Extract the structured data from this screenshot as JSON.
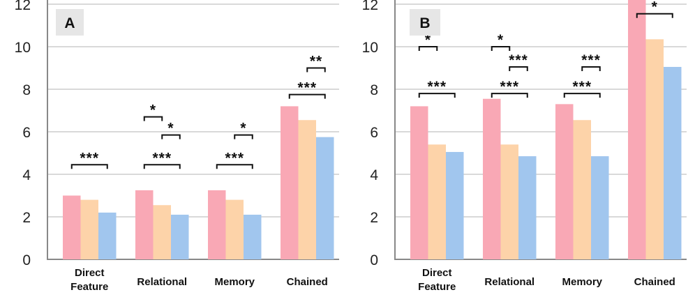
{
  "chart_data": [
    {
      "type": "bar",
      "panel_label": "A",
      "categories": [
        [
          "Direct",
          "Feature"
        ],
        [
          "Relational"
        ],
        [
          "Memory"
        ],
        [
          "Chained"
        ]
      ],
      "series": [
        {
          "values": [
            3.0,
            3.25,
            3.25,
            7.2
          ],
          "color": "#f9a8b5"
        },
        {
          "values": [
            2.8,
            2.55,
            2.8,
            6.55
          ],
          "color": "#fdd3a9"
        },
        {
          "values": [
            2.2,
            2.1,
            2.1,
            5.75
          ],
          "color": "#a1c6ee"
        }
      ],
      "ylim": [
        0,
        12
      ],
      "yticks": [
        0,
        2,
        4,
        6,
        8,
        10,
        12
      ],
      "grid": true,
      "significance": [
        {
          "category": 0,
          "from": 0,
          "to": 2,
          "y": 4.45,
          "label": "***"
        },
        {
          "category": 1,
          "from": 0,
          "to": 2,
          "y": 4.45,
          "label": "***"
        },
        {
          "category": 1,
          "from": 1,
          "to": 2,
          "y": 5.85,
          "label": "*"
        },
        {
          "category": 1,
          "from": 0,
          "to": 1,
          "y": 6.7,
          "label": "*"
        },
        {
          "category": 2,
          "from": 0,
          "to": 2,
          "y": 4.45,
          "label": "***"
        },
        {
          "category": 2,
          "from": 1,
          "to": 2,
          "y": 5.85,
          "label": "*"
        },
        {
          "category": 3,
          "from": 0,
          "to": 2,
          "y": 7.75,
          "label": "***"
        },
        {
          "category": 3,
          "from": 1,
          "to": 2,
          "y": 9.0,
          "label": "**"
        }
      ]
    },
    {
      "type": "bar",
      "panel_label": "B",
      "categories": [
        [
          "Direct",
          "Feature"
        ],
        [
          "Relational"
        ],
        [
          "Memory"
        ],
        [
          "Chained"
        ]
      ],
      "series": [
        {
          "values": [
            7.2,
            7.55,
            7.3,
            12.2
          ],
          "color": "#f9a8b5"
        },
        {
          "values": [
            5.4,
            5.4,
            6.55,
            10.35
          ],
          "color": "#fdd3a9"
        },
        {
          "values": [
            5.05,
            4.85,
            4.85,
            9.05
          ],
          "color": "#a1c6ee"
        }
      ],
      "ylim": [
        0,
        12
      ],
      "yticks": [
        0,
        2,
        4,
        6,
        8,
        10,
        12
      ],
      "grid": true,
      "significance": [
        {
          "category": 0,
          "from": 0,
          "to": 2,
          "y": 7.8,
          "label": "***"
        },
        {
          "category": 0,
          "from": 0,
          "to": 1,
          "y": 10.0,
          "label": "*"
        },
        {
          "category": 1,
          "from": 0,
          "to": 2,
          "y": 7.8,
          "label": "***"
        },
        {
          "category": 1,
          "from": 1,
          "to": 2,
          "y": 9.05,
          "label": "***"
        },
        {
          "category": 1,
          "from": 0,
          "to": 1,
          "y": 10.0,
          "label": "*"
        },
        {
          "category": 2,
          "from": 0,
          "to": 2,
          "y": 7.8,
          "label": "***"
        },
        {
          "category": 2,
          "from": 1,
          "to": 2,
          "y": 9.05,
          "label": "***"
        },
        {
          "category": 3,
          "from": 0,
          "to": 2,
          "y": 11.55,
          "label": "*"
        }
      ]
    }
  ]
}
